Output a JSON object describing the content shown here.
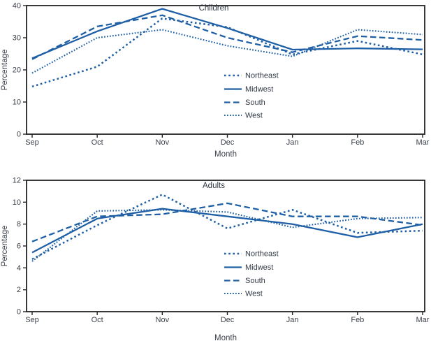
{
  "figure": {
    "background": "#ffffff"
  },
  "colors": {
    "line_blue": "#1e5fa5",
    "axis": "#222222",
    "tick_text": "#3a3f49",
    "title_text": "#333a46"
  },
  "months": [
    "Sep",
    "Oct",
    "Nov",
    "Dec",
    "Jan",
    "Feb",
    "Mar"
  ],
  "chart_data": [
    {
      "type": "line",
      "title": "Children",
      "xlabel": "Month",
      "ylabel": "Percentage",
      "categories": [
        "Sep",
        "Oct",
        "Nov",
        "Dec",
        "Jan",
        "Feb",
        "Mar"
      ],
      "ylim": [
        0,
        40
      ],
      "yticks": [
        0,
        10,
        20,
        30,
        40
      ],
      "grid": false,
      "legend_position": "inside-center-right",
      "series": [
        {
          "name": "Northeast",
          "style": "dot-medium",
          "values": [
            14.8,
            21,
            36,
            33.3,
            24.8,
            29,
            24.8
          ]
        },
        {
          "name": "Midwest",
          "style": "solid",
          "values": [
            23.6,
            32,
            39,
            33,
            26.3,
            26.7,
            26.4
          ]
        },
        {
          "name": "South",
          "style": "dash-long",
          "values": [
            23.3,
            33.5,
            37,
            30,
            25.5,
            30.5,
            29.3
          ]
        },
        {
          "name": "West",
          "style": "dot-fine",
          "values": [
            19,
            30,
            32.5,
            27.5,
            24.2,
            32.5,
            31
          ]
        }
      ]
    },
    {
      "type": "line",
      "title": "Adults",
      "xlabel": "Month",
      "ylabel": "Percentage",
      "categories": [
        "Sep",
        "Oct",
        "Nov",
        "Dec",
        "Jan",
        "Feb",
        "Mar"
      ],
      "ylim": [
        0,
        12
      ],
      "yticks": [
        0,
        2,
        4,
        6,
        8,
        10,
        12
      ],
      "grid": false,
      "legend_position": "inside-center-right",
      "series": [
        {
          "name": "Northeast",
          "style": "dot-medium",
          "values": [
            4.8,
            7.9,
            10.7,
            7.6,
            9.3,
            7.2,
            7.4
          ]
        },
        {
          "name": "Midwest",
          "style": "solid",
          "values": [
            5.4,
            8.5,
            9.4,
            8.7,
            8.0,
            6.8,
            8.0
          ]
        },
        {
          "name": "South",
          "style": "dash-long",
          "values": [
            6.4,
            8.7,
            8.9,
            9.9,
            8.7,
            8.7,
            7.9
          ]
        },
        {
          "name": "West",
          "style": "dot-fine",
          "values": [
            4.6,
            9.2,
            9.3,
            9.1,
            7.7,
            8.5,
            8.6
          ]
        }
      ]
    }
  ]
}
